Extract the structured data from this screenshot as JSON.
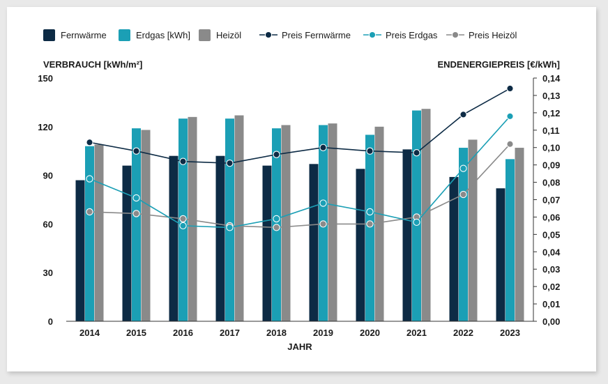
{
  "chart_data": {
    "type": "bar+line",
    "categories": [
      "2014",
      "2015",
      "2016",
      "2017",
      "2018",
      "2019",
      "2020",
      "2021",
      "2022",
      "2023"
    ],
    "bar_series": [
      {
        "name": "Fernwärme",
        "color": "#0d2b45",
        "values": [
          87,
          96,
          102,
          102,
          96,
          97,
          94,
          106,
          89,
          82
        ]
      },
      {
        "name": "Erdgas [kWh]",
        "color": "#1b9fb5",
        "values": [
          108,
          119,
          125,
          125,
          119,
          121,
          115,
          130,
          107,
          100
        ]
      },
      {
        "name": "Heizöl",
        "color": "#8a8a8a",
        "values": [
          109,
          118,
          126,
          127,
          121,
          122,
          120,
          131,
          112,
          107
        ]
      }
    ],
    "line_series": [
      {
        "name": "Preis Fernwärme",
        "color": "#0d2b45",
        "values": [
          0.103,
          0.098,
          0.092,
          0.091,
          0.096,
          0.1,
          0.098,
          0.097,
          0.119,
          0.134
        ]
      },
      {
        "name": "Preis Erdgas",
        "color": "#1b9fb5",
        "values": [
          0.082,
          0.071,
          0.055,
          0.054,
          0.059,
          0.068,
          0.063,
          0.057,
          0.088,
          0.118
        ]
      },
      {
        "name": "Preis Heizöl",
        "color": "#8a8a8a",
        "values": [
          0.063,
          0.062,
          0.059,
          0.055,
          0.054,
          0.056,
          0.056,
          0.06,
          0.073,
          0.102
        ]
      }
    ],
    "ylabel_left": "VERBRAUCH [kWh/m²]",
    "ylabel_right": "ENDENERGIEPREIS [€/kWh]",
    "xlabel": "JAHR",
    "ylim_left": [
      0,
      150
    ],
    "ylim_right": [
      0,
      0.14
    ],
    "left_ticks": [
      "0",
      "30",
      "60",
      "90",
      "120",
      "150"
    ],
    "right_ticks": [
      "0,00",
      "0,01",
      "0,02",
      "0,03",
      "0,04",
      "0,05",
      "0,06",
      "0,07",
      "0,08",
      "0,09",
      "0,10",
      "0,11",
      "0,12",
      "0,13",
      "0,14"
    ],
    "legend": [
      "Fernwärme",
      "Erdgas [kWh]",
      "Heizöl",
      "Preis Fernwärme",
      "Preis Erdgas",
      "Preis Heizöl"
    ],
    "legend_position": "top"
  }
}
